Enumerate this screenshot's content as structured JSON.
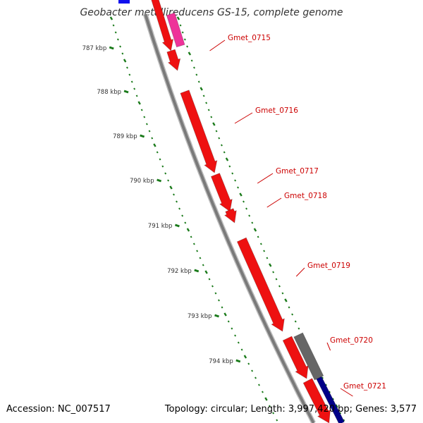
{
  "title": "Geobacter metallireducens GS-15, complete genome",
  "footer": {
    "accession": "Accession: NC_007517",
    "summary": "Topology: circular; Length: 3,997,420 bp; Genes: 3,577"
  },
  "colors": {
    "backbone": "#7a7a7a",
    "tick": "#1a7a1a",
    "cds": "#ee1111",
    "label": "#cc0000"
  },
  "kbp_labels": [
    "787 kbp",
    "788 kbp",
    "789 kbp",
    "790 kbp",
    "791 kbp",
    "792 kbp",
    "793 kbp",
    "794 kbp"
  ],
  "genes": [
    {
      "name": "Gmet_0715",
      "color": "#ee1111"
    },
    {
      "name": "Gmet_0716",
      "color": "#ee1111"
    },
    {
      "name": "Gmet_0717",
      "color": "#ee1111"
    },
    {
      "name": "Gmet_0718",
      "color": "#ee1111"
    },
    {
      "name": "Gmet_0719",
      "color": "#ee1111"
    },
    {
      "name": "Gmet_0720",
      "color": "#ee1111"
    },
    {
      "name": "Gmet_0721",
      "color": "#ee1111"
    }
  ],
  "other_features": [
    {
      "kind": "gene",
      "color": "#ee3399"
    },
    {
      "kind": "gene",
      "color": "#666666"
    },
    {
      "kind": "gene",
      "color": "#000088"
    },
    {
      "kind": "gene",
      "color": "#1111ee"
    }
  ]
}
